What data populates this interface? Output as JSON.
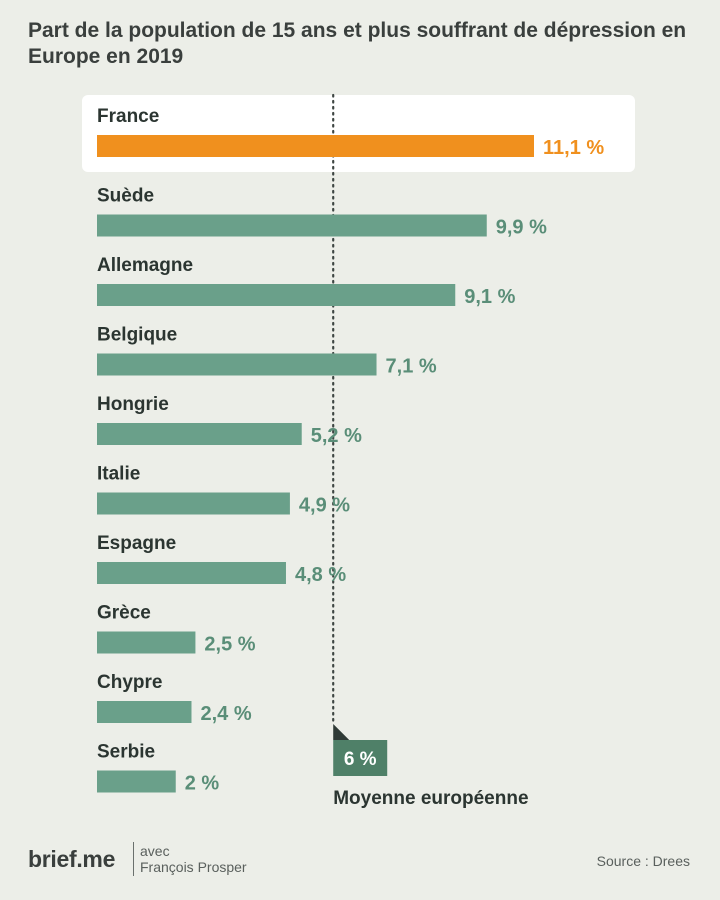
{
  "title": "Part de la population de 15 ans et plus souffrant de dépression en Europe en 2019",
  "colors": {
    "highlight": "#f0901e",
    "bar": "#6aa08a",
    "value_text": "#5a8e78",
    "average": "#4f8068",
    "background": "#eceee8"
  },
  "chart_data": {
    "type": "bar",
    "orientation": "horizontal",
    "unit": "%",
    "highlight": "France",
    "categories": [
      "France",
      "Suède",
      "Allemagne",
      "Belgique",
      "Hongrie",
      "Italie",
      "Espagne",
      "Grèce",
      "Chypre",
      "Serbie"
    ],
    "values": [
      11.1,
      9.9,
      9.1,
      7.1,
      5.2,
      4.9,
      4.8,
      2.5,
      2.4,
      2
    ],
    "value_labels": [
      "11,1 %",
      "9,9 %",
      "9,1 %",
      "7,1 %",
      "5,2 %",
      "4,9 %",
      "4,8 %",
      "2,5 %",
      "2,4 %",
      "2 %"
    ],
    "reference_line": {
      "value": 6,
      "value_label": "6 %",
      "label": "Moyenne européenne",
      "style": "dotted"
    },
    "xlim": [
      0,
      11.1
    ],
    "grid": false
  },
  "footer": {
    "brand": "brief.me",
    "with_line1": "avec",
    "with_line2": "François Prosper",
    "source": "Source : Drees"
  }
}
